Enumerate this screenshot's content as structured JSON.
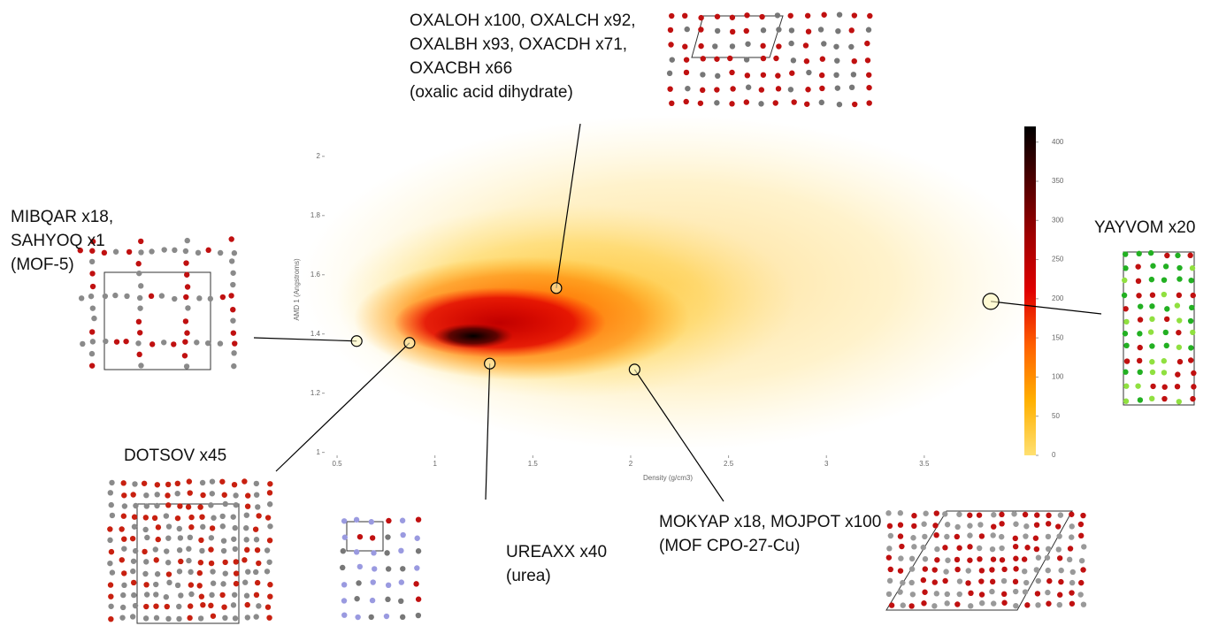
{
  "chart_data": {
    "type": "heatmap",
    "xlabel": "Density (g/cm3)",
    "ylabel": "AMD 1 (Angstroms)",
    "xlim": [
      0.45,
      3.93
    ],
    "xticks": [
      0.5,
      1,
      1.5,
      2,
      2.5,
      3,
      3.5
    ],
    "ylim": [
      0.99,
      2.11
    ],
    "yticks": [
      1,
      1.2,
      1.4,
      1.6,
      1.8,
      2
    ],
    "colorbar": {
      "lim": [
        0,
        420
      ],
      "ticks": [
        0,
        50,
        100,
        150,
        200,
        250,
        300,
        350,
        400
      ],
      "colors": [
        "#ffe070",
        "#ffb000",
        "#ff6000",
        "#e00000",
        "#a00000",
        "#500000",
        "#000000"
      ]
    },
    "annotations": [
      {
        "lines": [
          "MIBQAR x18,",
          "SAHYOQ x1",
          "(MOF-5)"
        ],
        "x": 0.6,
        "y": 1.376
      },
      {
        "lines": [
          "DOTSOV x45"
        ],
        "x": 0.87,
        "y": 1.37
      },
      {
        "lines": [
          "UREAXX x40",
          "(urea)"
        ],
        "x": 1.28,
        "y": 1.3
      },
      {
        "lines": [
          "OXALOH x100, OXALCH x92,",
          "OXALBH x93, OXACDH x71,",
          "OXACBH x66",
          "(oxalic acid dihydrate)"
        ],
        "x": 1.62,
        "y": 1.555
      },
      {
        "lines": [
          "MOKYAP x18, MOJPOT x100",
          "(MOF CPO-27-Cu)"
        ],
        "x": 2.02,
        "y": 1.28
      },
      {
        "lines": [
          "YAYVOM x20"
        ],
        "x": 3.84,
        "y": 1.51
      }
    ]
  }
}
